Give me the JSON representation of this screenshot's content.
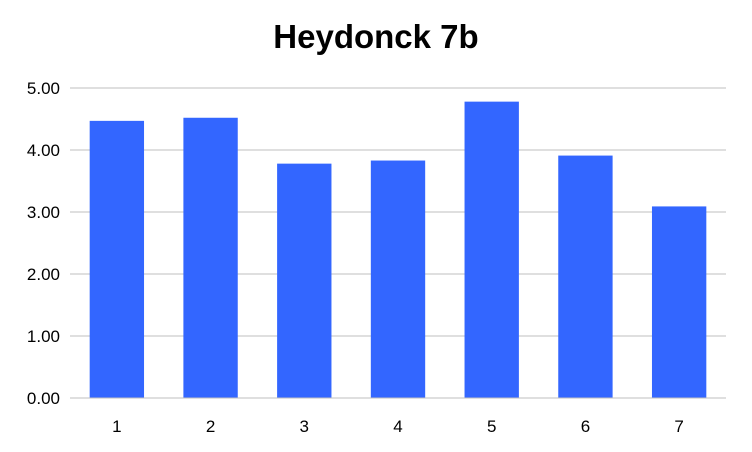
{
  "chart_data": {
    "type": "bar",
    "title": "Heydonck 7b",
    "xlabel": "",
    "ylabel": "",
    "categories": [
      "1",
      "2",
      "3",
      "4",
      "5",
      "6",
      "7"
    ],
    "series": [
      {
        "values": [
          4.47,
          4.52,
          3.78,
          3.83,
          4.78,
          3.91,
          3.09
        ]
      }
    ],
    "ylim": [
      0,
      5
    ],
    "yticks": [
      "0.00",
      "1.00",
      "2.00",
      "3.00",
      "4.00",
      "5.00"
    ],
    "grid": true,
    "legend": "none",
    "colors": {
      "bar": "#3366FF",
      "grid": "#BFBFBF",
      "axis": "#BFBFBF",
      "text": "#000000"
    }
  }
}
